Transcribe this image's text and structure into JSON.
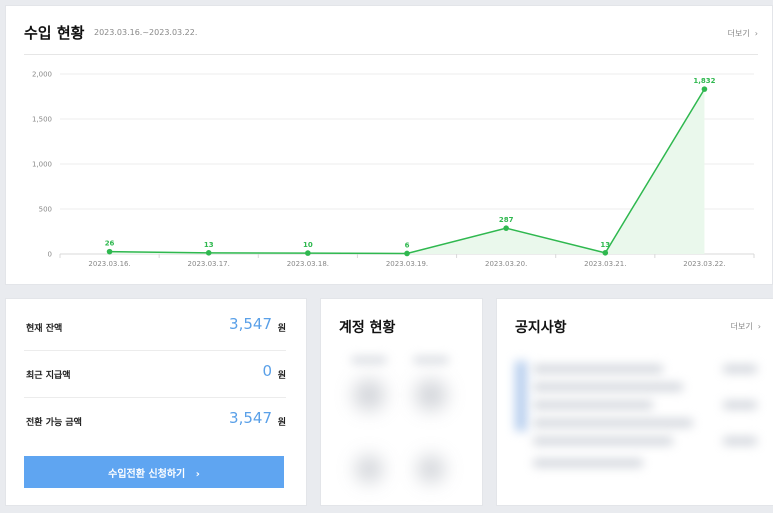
{
  "income": {
    "title": "수입 현황",
    "date_range": "2023.03.16.~2023.03.22.",
    "more_label": "더보기",
    "more_icon": "chevron-right-icon"
  },
  "chart_data": {
    "type": "line",
    "categories": [
      "2023.03.16.",
      "2023.03.17.",
      "2023.03.18.",
      "2023.03.19.",
      "2023.03.20.",
      "2023.03.21.",
      "2023.03.22."
    ],
    "values": [
      26,
      13,
      10,
      6,
      287,
      13,
      1832
    ],
    "value_labels": [
      "26",
      "13",
      "10",
      "6",
      "287",
      "13",
      "1,832"
    ],
    "yticks": [
      0,
      500,
      1000,
      1500,
      2000
    ],
    "ytick_labels": [
      "0",
      "500",
      "1,000",
      "1,500",
      "2,000"
    ],
    "ylim": [
      0,
      2000
    ],
    "grid": true,
    "line_color": "#2fb84f",
    "area_fill": "#eaf8ec"
  },
  "balance": {
    "rows": [
      {
        "label": "현재 잔액",
        "value": "3,547",
        "unit": "원"
      },
      {
        "label": "최근 지급액",
        "value": "0",
        "unit": "원"
      },
      {
        "label": "전환 가능 금액",
        "value": "3,547",
        "unit": "원"
      }
    ],
    "button_label": "수입전환 신청하기",
    "button_icon": "chevron-right-icon",
    "value_color": "#5aa0e8",
    "button_color": "#5fa5f1"
  },
  "account": {
    "title": "계정 현황"
  },
  "notice": {
    "title": "공지사항",
    "more_label": "더보기"
  }
}
